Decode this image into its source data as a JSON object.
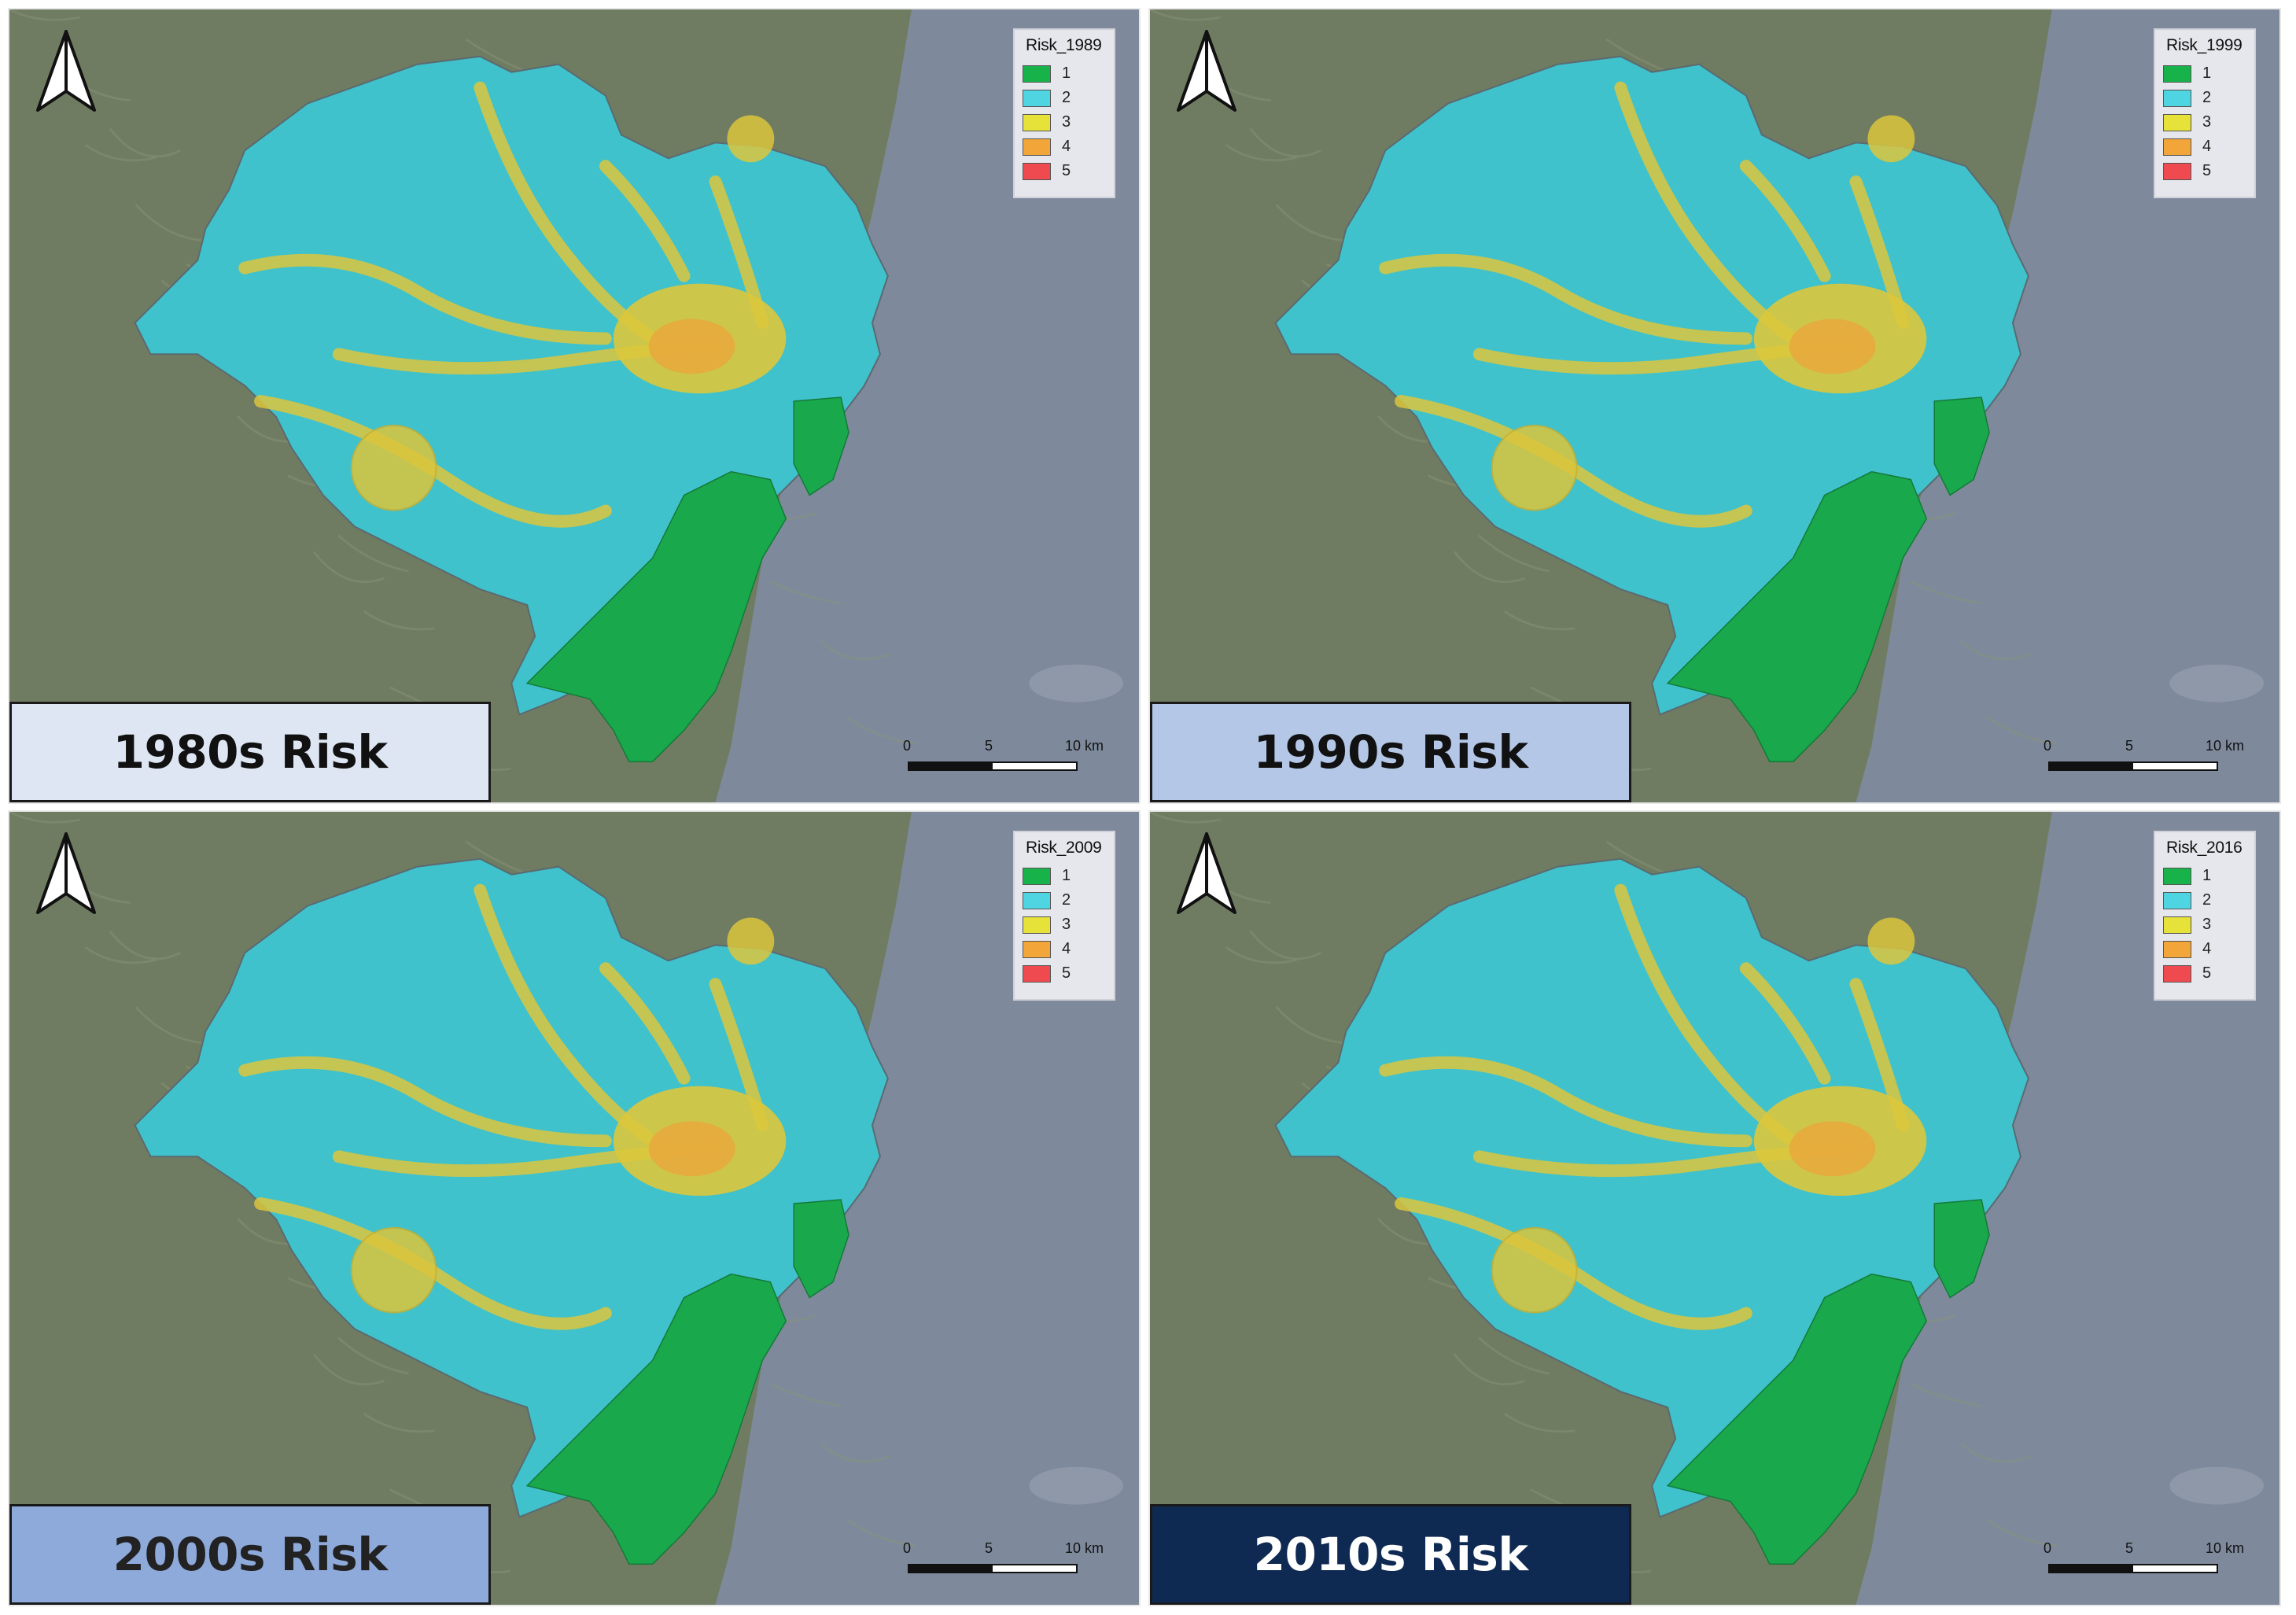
{
  "panels": [
    {
      "title": "1980s Risk",
      "title_bg": "#dde6f2",
      "title_color": "#111111",
      "legend_title": "Risk_1989",
      "classes": [
        "1",
        "2",
        "3",
        "4",
        "5"
      ],
      "scale_labels": [
        "0",
        "5",
        "10 km"
      ]
    },
    {
      "title": "1990s Risk",
      "title_bg": "#b4c7e7",
      "title_color": "#111111",
      "legend_title": "Risk_1999",
      "classes": [
        "1",
        "2",
        "3",
        "4",
        "5"
      ],
      "scale_labels": [
        "0",
        "5",
        "10 km"
      ]
    },
    {
      "title": "2000s Risk",
      "title_bg": "#8eaadb",
      "title_color": "#222222",
      "legend_title": "Risk_2009",
      "classes": [
        "1",
        "2",
        "3",
        "4",
        "5"
      ],
      "scale_labels": [
        "0",
        "5",
        "10 km"
      ]
    },
    {
      "title": "2010s Risk",
      "title_bg": "#0f2a52",
      "title_color": "#ffffff",
      "legend_title": "Risk_2016",
      "classes": [
        "1",
        "2",
        "3",
        "4",
        "5"
      ],
      "scale_labels": [
        "0",
        "5",
        "10 km"
      ]
    }
  ],
  "class_colors": [
    "#18b24a",
    "#4fd4e2",
    "#e6e23a",
    "#f2a63a",
    "#ef4a50"
  ],
  "map_colors": {
    "sea": "#7e8a9c",
    "land": "#6f7c62",
    "zone_low": "#1aa84c",
    "zone_mid": "#3fc2cc",
    "zone_high": "#dcc63c",
    "zone_urban": "#e8a83c"
  },
  "icons": {
    "north_arrow": "north-arrow-icon"
  }
}
